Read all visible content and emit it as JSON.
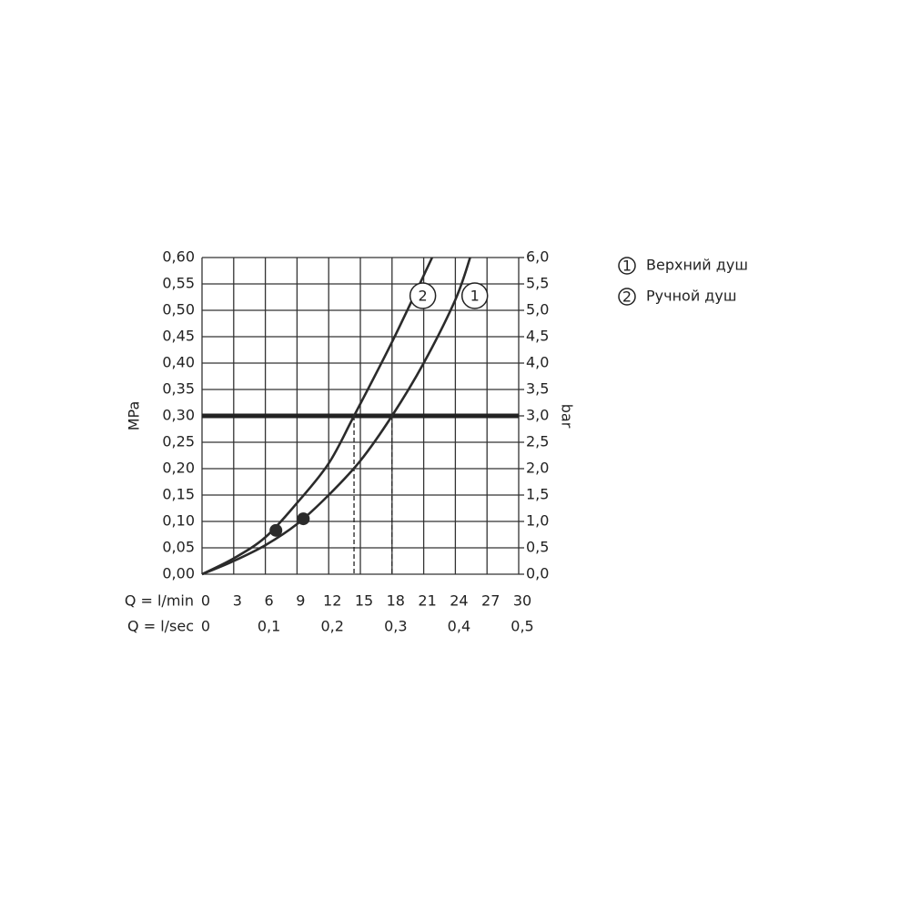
{
  "chart_data": {
    "type": "line",
    "x_label": "Q = l/min",
    "x2_label": "Q = l/sec",
    "y_label": "MPa",
    "y2_label": "bar",
    "xlim": [
      0,
      30
    ],
    "xticks": [
      0,
      3,
      6,
      9,
      12,
      15,
      18,
      21,
      24,
      27,
      30
    ],
    "x2lim": [
      0,
      0.5
    ],
    "x2ticks": [
      0,
      {
        "value": 0.1,
        "label": "0,1"
      },
      {
        "value": 0.2,
        "label": "0,2"
      },
      {
        "value": 0.3,
        "label": "0,3"
      },
      {
        "value": 0.4,
        "label": "0,4"
      },
      {
        "value": 0.5,
        "label": "0,5"
      }
    ],
    "ylim": [
      0,
      0.6
    ],
    "yticks": [
      {
        "value": 0,
        "label": "0,00"
      },
      {
        "value": 0.05,
        "label": "0,05"
      },
      {
        "value": 0.1,
        "label": "0,10"
      },
      {
        "value": 0.15,
        "label": "0,15"
      },
      {
        "value": 0.2,
        "label": "0,20"
      },
      {
        "value": 0.25,
        "label": "0,25"
      },
      {
        "value": 0.3,
        "label": "0,30"
      },
      {
        "value": 0.35,
        "label": "0,35"
      },
      {
        "value": 0.4,
        "label": "0,40"
      },
      {
        "value": 0.45,
        "label": "0,45"
      },
      {
        "value": 0.5,
        "label": "0,50"
      },
      {
        "value": 0.55,
        "label": "0,55"
      },
      {
        "value": 0.6,
        "label": "0,60"
      }
    ],
    "y2lim": [
      0,
      6
    ],
    "y2ticks": [
      {
        "value": 0,
        "label": "0,0"
      },
      {
        "value": 0.5,
        "label": "0,5"
      },
      {
        "value": 1,
        "label": "1,0"
      },
      {
        "value": 1.5,
        "label": "1,5"
      },
      {
        "value": 2,
        "label": "2,0"
      },
      {
        "value": 2.5,
        "label": "2,5"
      },
      {
        "value": 3,
        "label": "3,0"
      },
      {
        "value": 3.5,
        "label": "3,5"
      },
      {
        "value": 4,
        "label": "4,0"
      },
      {
        "value": 4.5,
        "label": "4,5"
      },
      {
        "value": 5,
        "label": "5,0"
      },
      {
        "value": 5.5,
        "label": "5,5"
      },
      {
        "value": 6,
        "label": "6,0"
      }
    ],
    "grid": true,
    "reference_line": 0.3,
    "drop_lines": [
      14.4,
      18
    ],
    "series": [
      {
        "name": "Верхний душ",
        "marker_label": "1",
        "color": "#2b2b2b",
        "x": [
          0,
          3,
          6,
          9,
          12,
          15,
          18,
          21,
          24,
          25.4
        ],
        "values": [
          0,
          0.025,
          0.055,
          0.095,
          0.15,
          0.215,
          0.3,
          0.4,
          0.52,
          0.6
        ],
        "point": {
          "x": 9.6,
          "y": 0.105
        }
      },
      {
        "name": "Ручной душ",
        "marker_label": "2",
        "color": "#2b2b2b",
        "x": [
          0,
          3,
          6,
          9,
          12,
          14.4,
          18,
          21.8
        ],
        "values": [
          0,
          0.03,
          0.07,
          0.135,
          0.21,
          0.3,
          0.44,
          0.6
        ],
        "point": {
          "x": 7,
          "y": 0.083
        }
      }
    ],
    "legend": "right"
  }
}
